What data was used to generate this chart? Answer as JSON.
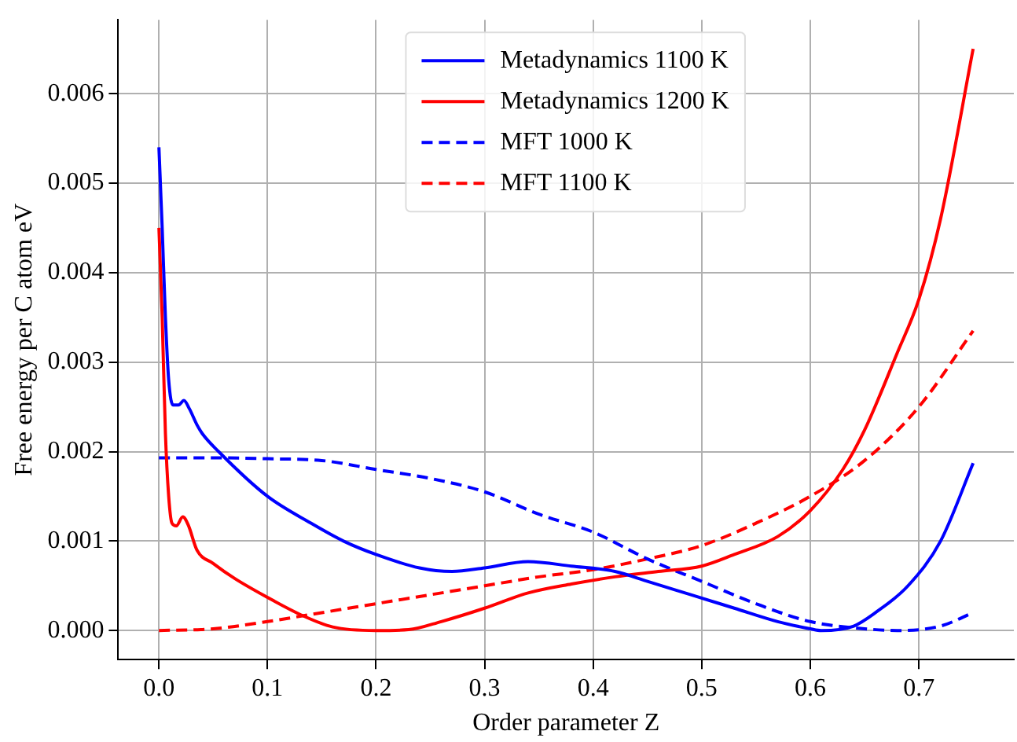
{
  "chart_data": {
    "type": "line",
    "xlabel": "Order parameter Z",
    "ylabel": "Free energy per C atom eV",
    "xlim": [
      -0.0375,
      0.7875
    ],
    "ylim": [
      -0.000325,
      0.006825
    ],
    "xticks": [
      {
        "value": 0,
        "label": "0.0"
      },
      {
        "value": 0.1,
        "label": "0.1"
      },
      {
        "value": 0.2,
        "label": "0.2"
      },
      {
        "value": 0.3,
        "label": "0.3"
      },
      {
        "value": 0.4,
        "label": "0.4"
      },
      {
        "value": 0.5,
        "label": "0.5"
      },
      {
        "value": 0.6,
        "label": "0.6"
      },
      {
        "value": 0.7,
        "label": "0.7"
      }
    ],
    "yticks": [
      {
        "value": 0,
        "label": "0.000"
      },
      {
        "value": 0.001,
        "label": "0.001"
      },
      {
        "value": 0.002,
        "label": "0.002"
      },
      {
        "value": 0.003,
        "label": "0.003"
      },
      {
        "value": 0.004,
        "label": "0.004"
      },
      {
        "value": 0.005,
        "label": "0.005"
      },
      {
        "value": 0.006,
        "label": "0.006"
      }
    ],
    "grid": true,
    "legend": "top",
    "marker": "none",
    "series": [
      {
        "name": "Metadynamics 1100 K",
        "color": "#0000ff",
        "line_style": "solid",
        "x": [
          0,
          0.003,
          0.006,
          0.009,
          0.013,
          0.018,
          0.023,
          0.028,
          0.035,
          0.04,
          0.055,
          0.1,
          0.14,
          0.17,
          0.2,
          0.24,
          0.27,
          0.3,
          0.34,
          0.38,
          0.42,
          0.45,
          0.49,
          0.53,
          0.57,
          0.6,
          0.61,
          0.64,
          0.66,
          0.69,
          0.72,
          0.75
        ],
        "values": [
          0.0054,
          0.0045,
          0.0035,
          0.0028,
          0.00252,
          0.00252,
          0.00257,
          0.00248,
          0.0023,
          0.0022,
          0.002,
          0.0015,
          0.0012,
          0.001,
          0.00085,
          0.0007,
          0.00066,
          0.0007,
          0.00077,
          0.00072,
          0.00066,
          0.00055,
          0.0004,
          0.00025,
          0.0001,
          2e-05,
          0,
          5e-05,
          0.0002,
          0.0005,
          0.001,
          0.00187
        ]
      },
      {
        "name": "Metadynamics 1200 K",
        "color": "#ff0000",
        "line_style": "solid",
        "x": [
          0,
          0.003,
          0.006,
          0.009,
          0.012,
          0.016,
          0.022,
          0.027,
          0.035,
          0.05,
          0.07,
          0.1,
          0.13,
          0.16,
          0.2,
          0.23,
          0.26,
          0.3,
          0.34,
          0.38,
          0.42,
          0.46,
          0.5,
          0.53,
          0.57,
          0.6,
          0.63,
          0.65,
          0.68,
          0.7,
          0.72,
          0.75
        ],
        "values": [
          0.0045,
          0.0035,
          0.0022,
          0.0015,
          0.0012,
          0.00117,
          0.00127,
          0.00118,
          0.0009,
          0.00075,
          0.00058,
          0.00037,
          0.00018,
          4e-05,
          0,
          1e-05,
          0.0001,
          0.00025,
          0.00042,
          0.00052,
          0.0006,
          0.00066,
          0.00072,
          0.00085,
          0.00105,
          0.00134,
          0.0018,
          0.00224,
          0.0031,
          0.0037,
          0.0046,
          0.0065
        ]
      },
      {
        "name": "MFT 1000 K",
        "color": "#0000ff",
        "line_style": "dashed",
        "x": [
          0,
          0.05,
          0.1,
          0.15,
          0.2,
          0.25,
          0.3,
          0.35,
          0.4,
          0.45,
          0.5,
          0.55,
          0.6,
          0.65,
          0.68,
          0.72,
          0.75
        ],
        "values": [
          0.00193,
          0.00193,
          0.00192,
          0.0019,
          0.0018,
          0.0017,
          0.00155,
          0.0013,
          0.0011,
          0.0008,
          0.00055,
          0.0003,
          0.0001,
          2e-05,
          0,
          5e-05,
          0.0002
        ]
      },
      {
        "name": "MFT 1100 K",
        "color": "#ff0000",
        "line_style": "dashed",
        "x": [
          0,
          0.05,
          0.1,
          0.15,
          0.2,
          0.25,
          0.3,
          0.35,
          0.4,
          0.45,
          0.5,
          0.55,
          0.6,
          0.65,
          0.7,
          0.75
        ],
        "values": [
          0,
          2e-05,
          0.0001,
          0.0002,
          0.0003,
          0.0004,
          0.0005,
          0.0006,
          0.00068,
          0.0008,
          0.00095,
          0.0012,
          0.0015,
          0.0019,
          0.0025,
          0.00335
        ]
      }
    ]
  }
}
